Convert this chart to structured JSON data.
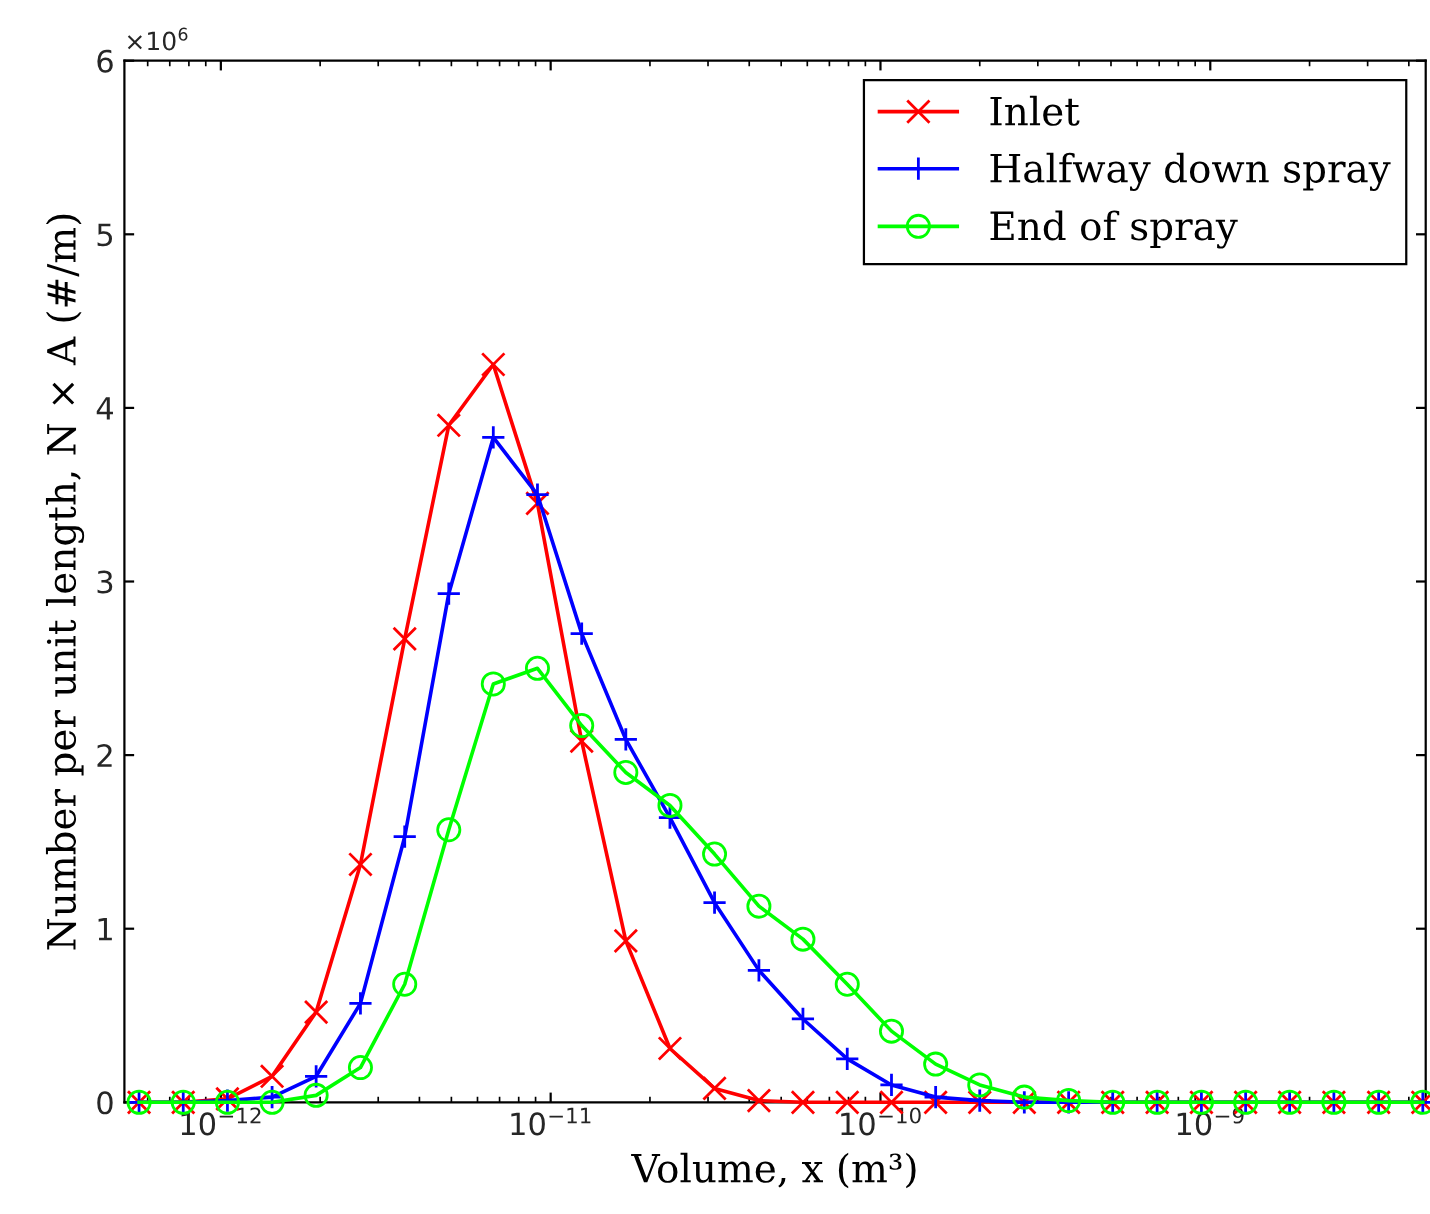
{
  "chart_data": {
    "type": "line",
    "xlabel": "Volume, x (m³)",
    "ylabel": "Number per unit length, N × A (#/m)",
    "log": "x",
    "legend": "top right",
    "grid": false,
    "xlim": [
      5.1e-13,
      4.5e-09
    ],
    "xticks": [
      {
        "value": 1e-12,
        "label": "10$^{−12}$"
      },
      {
        "value": 1e-11,
        "label": "10$^{−11}$"
      },
      {
        "value": 1e-10,
        "label": "10$^{−10}$"
      },
      {
        "value": 1e-09,
        "label": "10$^{−9}$"
      }
    ],
    "ylim": [
      0,
      6
    ],
    "yticks": [
      0,
      1,
      2,
      3,
      4,
      5,
      6
    ],
    "annotations": [
      "×10$^{6}$"
    ],
    "x": [
      5.65e-13,
      7.69e-13,
      1.047e-12,
      1.43e-12,
      1.945e-12,
      2.65e-12,
      3.61e-12,
      4.91e-12,
      6.7e-12,
      9.12e-12,
      1.242e-11,
      1.69e-11,
      2.3e-11,
      3.14e-11,
      4.28e-11,
      5.82e-11,
      7.93e-11,
      1.08e-10,
      1.47e-10,
      2e-10,
      2.73e-10,
      3.72e-10,
      5.06e-10,
      6.9e-10,
      9.4e-10,
      1.28e-09,
      1.74e-09,
      2.37e-09,
      3.24e-09,
      4.41e-09
    ],
    "series": [
      {
        "name": "Inlet",
        "color": "#ff0000",
        "marker": "cross",
        "values": [
          0,
          0,
          0.02,
          0.15,
          0.52,
          1.37,
          2.67,
          3.9,
          4.25,
          3.45,
          2.08,
          0.93,
          0.31,
          0.08,
          0.01,
          0,
          0,
          0,
          0,
          0,
          0,
          0,
          0,
          0,
          0,
          0,
          0,
          0,
          0,
          0
        ]
      },
      {
        "name": "Halfway down spray",
        "color": "#0000ff",
        "marker": "plus",
        "values": [
          0,
          0,
          0.01,
          0.03,
          0.15,
          0.57,
          1.53,
          2.93,
          3.83,
          3.5,
          2.7,
          2.09,
          1.64,
          1.15,
          0.76,
          0.48,
          0.25,
          0.1,
          0.03,
          0.01,
          0,
          0,
          0,
          0,
          0,
          0,
          0,
          0,
          0,
          0
        ]
      },
      {
        "name": "End of spray",
        "color": "#00ff00",
        "marker": "circle",
        "values": [
          0,
          0,
          0,
          0,
          0.04,
          0.2,
          0.68,
          1.57,
          2.41,
          2.5,
          2.17,
          1.9,
          1.71,
          1.43,
          1.13,
          0.94,
          0.68,
          0.41,
          0.22,
          0.1,
          0.03,
          0.01,
          0,
          0,
          0,
          0,
          0,
          0,
          0,
          0
        ]
      }
    ]
  }
}
